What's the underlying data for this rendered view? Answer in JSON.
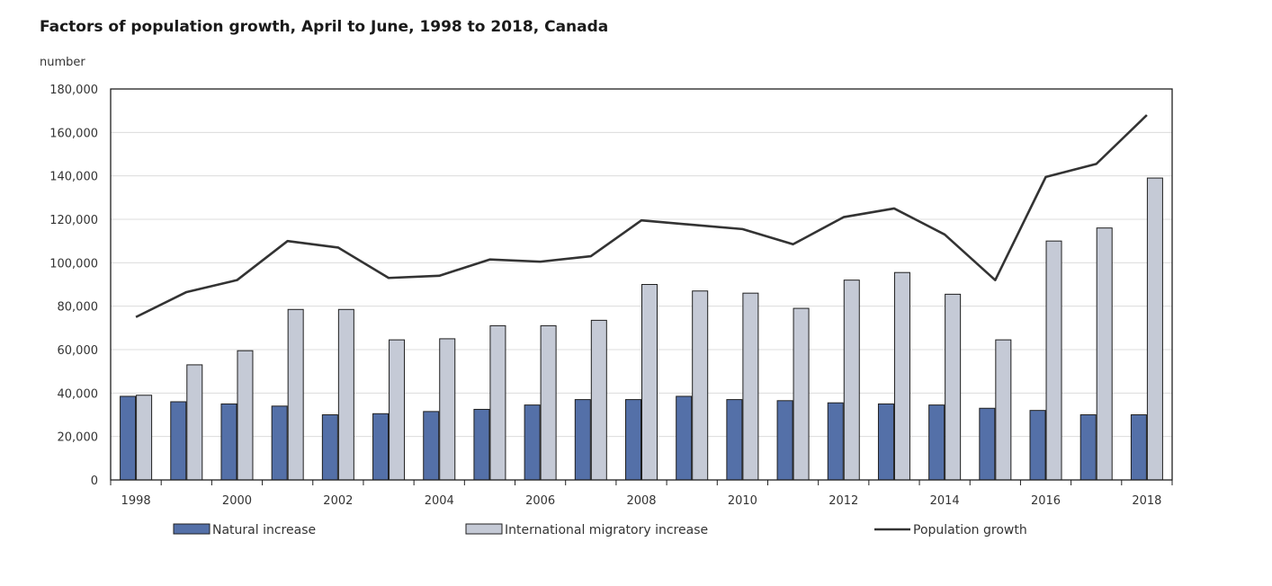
{
  "chart_data": {
    "type": "bar",
    "title": "Factors of population growth, April to June, 1998 to 2018, Canada",
    "ylabel": "number",
    "xlabel": "",
    "ylim": [
      0,
      180000
    ],
    "yticks": [
      0,
      20000,
      40000,
      60000,
      80000,
      100000,
      120000,
      140000,
      160000,
      180000
    ],
    "ytick_labels": [
      "0",
      "20,000",
      "40,000",
      "60,000",
      "80,000",
      "100,000",
      "120,000",
      "140,000",
      "160,000",
      "180,000"
    ],
    "categories": [
      "1998",
      "1999",
      "2000",
      "2001",
      "2002",
      "2003",
      "2004",
      "2005",
      "2006",
      "2007",
      "2008",
      "2009",
      "2010",
      "2011",
      "2012",
      "2013",
      "2014",
      "2015",
      "2016",
      "2017",
      "2018"
    ],
    "xtick_labels": [
      "1998",
      "",
      "2000",
      "",
      "2002",
      "",
      "2004",
      "",
      "2006",
      "",
      "2008",
      "",
      "2010",
      "",
      "2012",
      "",
      "2014",
      "",
      "2016",
      "",
      "2018"
    ],
    "grid": true,
    "legend_position": "bottom",
    "series": [
      {
        "name": "Natural increase",
        "type": "bar",
        "color": "#5470a8",
        "values": [
          38500,
          36000,
          35000,
          34000,
          30000,
          30500,
          31500,
          32500,
          34500,
          37000,
          37000,
          38500,
          37000,
          36500,
          35500,
          35000,
          34500,
          33000,
          32000,
          30000,
          30000
        ]
      },
      {
        "name": "International migratory increase",
        "type": "bar",
        "color": "#c5cad6",
        "values": [
          39000,
          53000,
          59500,
          78500,
          78500,
          64500,
          65000,
          71000,
          71000,
          73500,
          90000,
          87000,
          86000,
          79000,
          92000,
          95500,
          85500,
          64500,
          110000,
          116000,
          139000
        ]
      },
      {
        "name": "Population growth",
        "type": "line",
        "color": "#333333",
        "values": [
          75000,
          86500,
          92000,
          110000,
          107000,
          93000,
          94000,
          101500,
          100500,
          103000,
          119500,
          117500,
          115500,
          108500,
          121000,
          125000,
          113000,
          92000,
          139500,
          145500,
          168000
        ]
      }
    ],
    "legend_labels": [
      "Natural increase",
      "International migratory increase",
      "Population growth"
    ]
  }
}
